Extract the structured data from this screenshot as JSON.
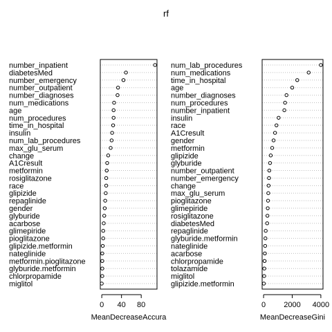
{
  "chart_data": {
    "type": "scatter",
    "title": "rf",
    "grid": "dotted horizontal",
    "panels": [
      {
        "xlabel": "MeanDecreaseAccura",
        "xlim": [
          -3,
          112
        ],
        "xticks": [
          0,
          40,
          80
        ],
        "variables": [
          "number_inpatient",
          "diabetesMed",
          "number_emergency",
          "number_outpatient",
          "number_diagnoses",
          "num_medications",
          "age",
          "num_procedures",
          "time_in_hospital",
          "insulin",
          "num_lab_procedures",
          "max_glu_serum",
          "change",
          "A1Cresult",
          "metformin",
          "rosiglitazone",
          "race",
          "glipizide",
          "repaglinide",
          "gender",
          "glyburide",
          "acarbose",
          "glimepiride",
          "pioglitazone",
          "glipizide.metformin",
          "nateglinide",
          "metformin.pioglitazone",
          "glyburide.metformin",
          "chlorpropamide",
          "miglitol"
        ],
        "values": [
          108,
          49,
          44,
          33,
          32,
          25,
          24,
          24,
          23,
          21,
          20,
          18,
          13,
          11,
          10,
          9,
          9,
          8,
          7,
          6,
          5,
          4,
          3,
          3,
          2,
          1,
          1,
          1,
          1,
          0
        ]
      },
      {
        "xlabel": "MeanDecreaseGini",
        "xlim": [
          -100,
          4150
        ],
        "xticks": [
          0,
          2000,
          4000
        ],
        "variables": [
          "num_lab_procedures",
          "num_medications",
          "time_in_hospital",
          "age",
          "number_diagnoses",
          "num_procedures",
          "number_inpatient",
          "insulin",
          "race",
          "A1Cresult",
          "gender",
          "metformin",
          "glipizide",
          "glyburide",
          "number_outpatient",
          "number_emergency",
          "change",
          "max_glu_serum",
          "pioglitazone",
          "glimepiride",
          "rosiglitazone",
          "diabetesMed",
          "repaglinide",
          "glyburide.metformin",
          "nateglinide",
          "acarbose",
          "chlorpropamide",
          "tolazamide",
          "miglitol",
          "glipizide.metformin"
        ],
        "values": [
          4000,
          3150,
          2350,
          2000,
          1600,
          1500,
          1450,
          1050,
          900,
          800,
          700,
          600,
          500,
          450,
          400,
          380,
          350,
          330,
          310,
          290,
          270,
          250,
          150,
          130,
          110,
          90,
          70,
          50,
          40,
          20
        ]
      }
    ]
  }
}
